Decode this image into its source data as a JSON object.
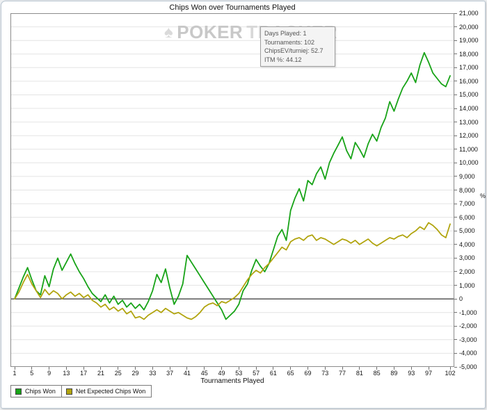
{
  "watermark": {
    "logo": "♠",
    "text_bold": "POKER",
    "text_light": "TRACKER"
  },
  "tooltip": {
    "lines": [
      "Days Played: 1",
      "Tournaments: 102",
      "ChipsEV/turniej: 52.7",
      "ITM %: 44.12"
    ]
  },
  "chart_data": {
    "type": "line",
    "title": "Chips Won over Tournaments Played",
    "xlabel": "Tournaments Played",
    "ylabel": "%",
    "ylim": [
      -5000,
      21000
    ],
    "y_tick_step": 1000,
    "x_count": 102,
    "x_ticks": [
      1,
      5,
      9,
      13,
      17,
      21,
      25,
      29,
      33,
      37,
      41,
      45,
      49,
      53,
      57,
      61,
      65,
      69,
      73,
      77,
      81,
      85,
      89,
      93,
      97,
      102
    ],
    "grid": "horizontal",
    "legend_position": "bottom-left",
    "zero_line_color": "#000000",
    "grid_color": "#e4e4e4",
    "series": [
      {
        "name": "Chips Won",
        "color": "#17a317",
        "values": [
          0,
          800,
          1600,
          2300,
          1400,
          600,
          300,
          1700,
          900,
          2200,
          3000,
          2100,
          2700,
          3300,
          2600,
          2000,
          1500,
          900,
          400,
          100,
          -200,
          300,
          -300,
          200,
          -400,
          -100,
          -600,
          -300,
          -700,
          -400,
          -800,
          -200,
          600,
          1800,
          1200,
          2200,
          800,
          -400,
          200,
          1100,
          3200,
          2700,
          2200,
          1700,
          1200,
          700,
          200,
          -300,
          -800,
          -1500,
          -1200,
          -900,
          -400,
          600,
          1100,
          2100,
          2900,
          2400,
          2000,
          2600,
          3600,
          4600,
          5100,
          4300,
          6500,
          7400,
          8100,
          7200,
          8700,
          8400,
          9200,
          9700,
          8800,
          10000,
          10700,
          11300,
          11900,
          10900,
          10300,
          11500,
          11000,
          10400,
          11400,
          12100,
          11600,
          12600,
          13300,
          14500,
          13800,
          14700,
          15500,
          16000,
          16600,
          15900,
          17200,
          18100,
          17400,
          16600,
          16200,
          15800,
          15600,
          16400
        ]
      },
      {
        "name": "Net Expected Chips Won",
        "color": "#b1a40e",
        "values": [
          0,
          500,
          1200,
          1800,
          1100,
          600,
          100,
          700,
          300,
          600,
          400,
          0,
          300,
          500,
          200,
          400,
          100,
          300,
          -100,
          -300,
          -600,
          -400,
          -800,
          -600,
          -900,
          -700,
          -1100,
          -900,
          -1400,
          -1300,
          -1500,
          -1200,
          -1000,
          -800,
          -1000,
          -700,
          -900,
          -1100,
          -1000,
          -1200,
          -1400,
          -1500,
          -1300,
          -1000,
          -600,
          -400,
          -300,
          -500,
          -200,
          -300,
          -100,
          100,
          400,
          900,
          1400,
          1800,
          2100,
          1900,
          2300,
          2600,
          3000,
          3400,
          3800,
          3600,
          4200,
          4400,
          4500,
          4300,
          4600,
          4700,
          4300,
          4500,
          4400,
          4200,
          4000,
          4200,
          4400,
          4300,
          4100,
          4300,
          4000,
          4200,
          4400,
          4100,
          3900,
          4100,
          4300,
          4500,
          4400,
          4600,
          4700,
          4500,
          4800,
          5000,
          5300,
          5100,
          5600,
          5400,
          5100,
          4700,
          4500,
          5500
        ]
      }
    ]
  }
}
